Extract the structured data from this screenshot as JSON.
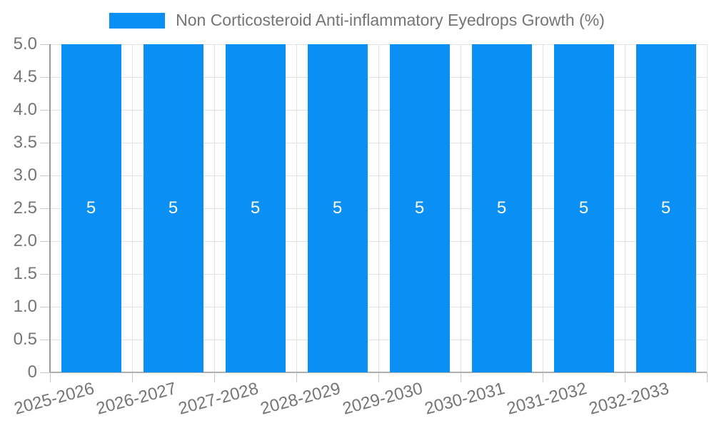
{
  "chart_data": {
    "type": "bar",
    "title": "",
    "legend": {
      "label": "Non Corticosteroid Anti-inflammatory Eyedrops Growth (%)",
      "position": "top"
    },
    "categories": [
      "2025-2026",
      "2026-2027",
      "2027-2028",
      "2028-2029",
      "2029-2030",
      "2030-2031",
      "2031-2032",
      "2032-2033"
    ],
    "values": [
      5,
      5,
      5,
      5,
      5,
      5,
      5,
      5
    ],
    "bar_labels": [
      "5",
      "5",
      "5",
      "5",
      "5",
      "5",
      "5",
      "5"
    ],
    "xlabel": "",
    "ylabel": "",
    "ylim": [
      0,
      5
    ],
    "ytick_step": 0.5,
    "ytick_labels_top_to_bottom": [
      "5.0",
      "4.5",
      "4.0",
      "3.5",
      "3.0",
      "2.5",
      "2.0",
      "1.5",
      "1.0",
      "0.5",
      "0"
    ],
    "grid": true,
    "colors": {
      "bar": "#0a8ff5",
      "gridline": "#e3e3e3",
      "axis_y": "#999999",
      "axis_x": "#b0b0b0",
      "tick": "#c9c9c9",
      "text": "#757575",
      "bar_label_text": "#ffffff",
      "background": "#ffffff"
    },
    "x_label_rotation_deg": -15
  }
}
